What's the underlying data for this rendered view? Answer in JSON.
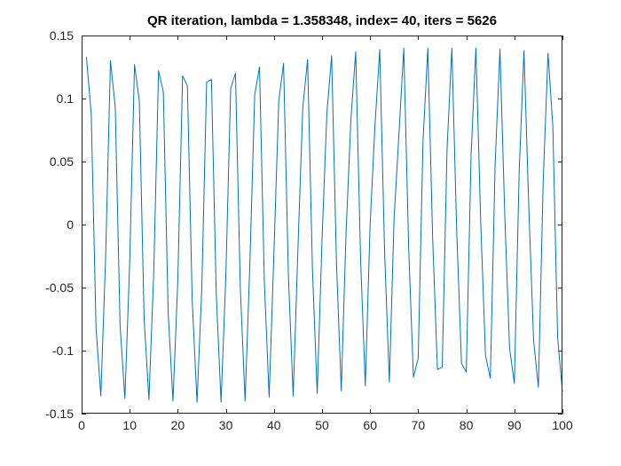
{
  "chart_data": {
    "type": "line",
    "title": "QR iteration, lambda = 1.358348, index= 40, iters = 5626",
    "xlabel": "",
    "ylabel": "",
    "xlim": [
      0,
      100
    ],
    "ylim": [
      -0.15,
      0.15
    ],
    "grid": false,
    "x_ticks": [
      0,
      10,
      20,
      30,
      40,
      50,
      60,
      70,
      80,
      90,
      100
    ],
    "x_tick_labels": [
      "0",
      "10",
      "20",
      "30",
      "40",
      "50",
      "60",
      "70",
      "80",
      "90",
      "100"
    ],
    "y_ticks": [
      0.15,
      0.1,
      0.05,
      0,
      -0.05,
      -0.1,
      -0.15
    ],
    "y_tick_labels": [
      "0.15",
      "0.1",
      "0.05",
      "0",
      "-0.05",
      "-0.1",
      "-0.15"
    ],
    "series": [
      {
        "color": "#0072BD",
        "x": [
          1,
          2,
          3,
          4,
          5,
          6,
          7,
          8,
          9,
          10,
          11,
          12,
          13,
          14,
          15,
          16,
          17,
          18,
          19,
          20,
          21,
          22,
          23,
          24,
          25,
          26,
          27,
          28,
          29,
          30,
          31,
          32,
          33,
          34,
          35,
          36,
          37,
          38,
          39,
          40,
          41,
          42,
          43,
          44,
          45,
          46,
          47,
          48,
          49,
          50,
          51,
          52,
          53,
          54,
          55,
          56,
          57,
          58,
          59,
          60,
          61,
          62,
          63,
          64,
          65,
          66,
          67,
          68,
          69,
          70,
          71,
          72,
          73,
          74,
          75,
          76,
          77,
          78,
          79,
          80,
          81,
          82,
          83,
          84,
          85,
          86,
          87,
          88,
          89,
          90,
          91,
          92,
          93,
          94,
          95,
          96,
          97,
          98,
          99,
          100
        ],
        "y": [
          0.133,
          0.088,
          -0.082,
          -0.136,
          -0.025,
          0.13,
          0.093,
          -0.08,
          -0.138,
          -0.03,
          0.127,
          0.098,
          -0.075,
          -0.139,
          -0.038,
          0.122,
          0.105,
          -0.07,
          -0.14,
          -0.045,
          0.118,
          0.11,
          -0.06,
          -0.141,
          -0.05,
          0.113,
          0.115,
          -0.055,
          -0.141,
          -0.04,
          0.108,
          0.12,
          -0.05,
          -0.14,
          -0.03,
          0.103,
          0.125,
          -0.045,
          -0.137,
          -0.022,
          0.098,
          0.128,
          -0.04,
          -0.136,
          -0.018,
          0.093,
          0.131,
          -0.035,
          -0.134,
          -0.012,
          0.088,
          0.134,
          -0.03,
          -0.132,
          -0.006,
          0.083,
          0.137,
          -0.025,
          -0.128,
          0.0,
          0.078,
          0.139,
          -0.02,
          -0.125,
          0.006,
          0.072,
          0.14,
          -0.016,
          -0.121,
          -0.106,
          0.066,
          0.14,
          -0.01,
          -0.115,
          -0.113,
          0.06,
          0.14,
          -0.004,
          -0.11,
          -0.117,
          0.055,
          0.14,
          0.002,
          -0.104,
          -0.122,
          0.048,
          0.139,
          0.008,
          -0.098,
          -0.126,
          0.042,
          0.138,
          0.014,
          -0.092,
          -0.129,
          0.035,
          0.136,
          0.078,
          -0.09,
          -0.133
        ]
      }
    ]
  }
}
